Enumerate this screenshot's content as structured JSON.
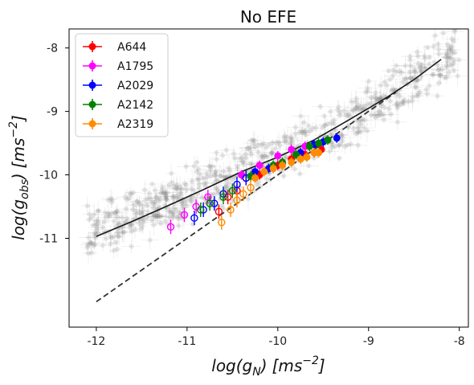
{
  "chart_data": {
    "type": "scatter",
    "title": "No EFE",
    "xlabel": "log(g",
    "xlabel_sub": "N",
    "ylabel": "log(g",
    "ylabel_sub": "obs",
    "unit_prefix": "[ms",
    "unit_exp": "−2",
    "unit_suffix": "]",
    "xlim": [
      -12.3,
      -7.9
    ],
    "ylim": [
      -12.4,
      -7.7
    ],
    "xticks": [
      -12,
      -11,
      -10,
      -9,
      -8
    ],
    "xtick_labels": [
      "-12",
      "-11",
      "-10",
      "-9",
      "-8"
    ],
    "yticks": [
      -11,
      -10,
      -9,
      -8
    ],
    "ytick_labels": [
      "-11",
      "-10",
      "-9",
      "-8"
    ],
    "grid": false,
    "legend_placement": "top-left",
    "background_cloud_color": "#808080",
    "series": [
      {
        "name": "A644",
        "color": "#ff0000",
        "open_points": [
          [
            -10.65,
            -10.58
          ],
          [
            -10.55,
            -10.35
          ],
          [
            -10.45,
            -10.25
          ],
          [
            -10.35,
            -10.05
          ]
        ],
        "filled_points": [
          [
            -10.2,
            -10.0
          ],
          [
            -10.0,
            -9.85
          ],
          [
            -9.85,
            -9.75
          ],
          [
            -9.7,
            -9.68
          ],
          [
            -9.6,
            -9.65
          ],
          [
            -9.52,
            -9.6
          ]
        ]
      },
      {
        "name": "A1795",
        "color": "#ff00ff",
        "open_points": [
          [
            -11.18,
            -10.82
          ],
          [
            -11.03,
            -10.63
          ],
          [
            -10.9,
            -10.5
          ],
          [
            -10.77,
            -10.35
          ]
        ],
        "filled_points": [
          [
            -10.4,
            -10.0
          ],
          [
            -10.2,
            -9.85
          ],
          [
            -10.0,
            -9.7
          ],
          [
            -9.85,
            -9.6
          ],
          [
            -9.7,
            -9.55
          ]
        ]
      },
      {
        "name": "A2029",
        "color": "#0000ff",
        "open_points": [
          [
            -10.92,
            -10.68
          ],
          [
            -10.82,
            -10.55
          ],
          [
            -10.7,
            -10.45
          ],
          [
            -10.6,
            -10.3
          ],
          [
            -10.45,
            -10.15
          ],
          [
            -10.35,
            -10.05
          ]
        ],
        "filled_points": [
          [
            -10.25,
            -9.95
          ],
          [
            -10.1,
            -9.9
          ],
          [
            -9.95,
            -9.82
          ],
          [
            -9.75,
            -9.65
          ],
          [
            -9.6,
            -9.52
          ],
          [
            -9.5,
            -9.48
          ],
          [
            -9.35,
            -9.42
          ]
        ]
      },
      {
        "name": "A2142",
        "color": "#008000",
        "open_points": [
          [
            -10.85,
            -10.55
          ],
          [
            -10.75,
            -10.45
          ],
          [
            -10.6,
            -10.35
          ],
          [
            -10.5,
            -10.25
          ]
        ],
        "filled_points": [
          [
            -10.3,
            -10.02
          ],
          [
            -10.05,
            -9.85
          ],
          [
            -9.95,
            -9.8
          ],
          [
            -9.8,
            -9.68
          ],
          [
            -9.65,
            -9.55
          ],
          [
            -9.55,
            -9.5
          ],
          [
            -9.45,
            -9.45
          ]
        ]
      },
      {
        "name": "A2319",
        "color": "#ff8c00",
        "open_points": [
          [
            -10.62,
            -10.75
          ],
          [
            -10.52,
            -10.55
          ],
          [
            -10.45,
            -10.4
          ],
          [
            -10.38,
            -10.3
          ],
          [
            -10.3,
            -10.2
          ]
        ],
        "filled_points": [
          [
            -10.25,
            -10.05
          ],
          [
            -10.15,
            -9.95
          ],
          [
            -10.05,
            -9.9
          ],
          [
            -9.95,
            -9.85
          ],
          [
            -9.85,
            -9.8
          ],
          [
            -9.75,
            -9.75
          ],
          [
            -9.68,
            -9.72
          ],
          [
            -9.6,
            -9.65
          ],
          [
            -9.55,
            -9.65
          ]
        ]
      }
    ],
    "model_curve": {
      "color": "#1a1a1a",
      "points": [
        [
          -12.0,
          -10.97
        ],
        [
          -11.6,
          -10.73
        ],
        [
          -11.2,
          -10.48
        ],
        [
          -10.8,
          -10.22
        ],
        [
          -10.4,
          -9.95
        ],
        [
          -10.0,
          -9.72
        ],
        [
          -9.6,
          -9.45
        ],
        [
          -9.2,
          -9.12
        ],
        [
          -8.8,
          -8.78
        ],
        [
          -8.5,
          -8.5
        ],
        [
          -8.2,
          -8.18
        ]
      ]
    },
    "one_to_one_line": {
      "color": "#333333",
      "points": [
        [
          -12.0,
          -12.0
        ],
        [
          -8.7,
          -8.7
        ]
      ]
    }
  }
}
